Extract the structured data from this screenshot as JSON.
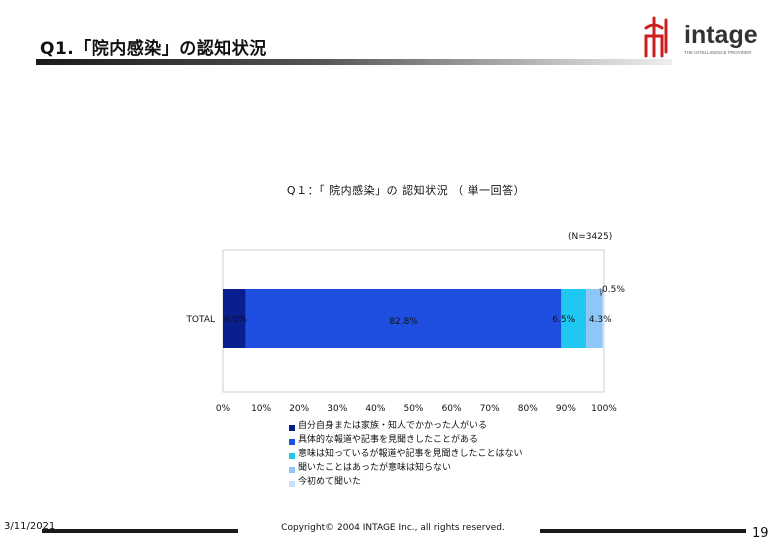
{
  "slide": {
    "title": "Q1.「院内感染」の認知状況",
    "date": "3/11/2021",
    "copyright": "Copyright© 2004 INTAGE Inc., all rights reserved.",
    "page": "19"
  },
  "logo": {
    "text": "intage",
    "tagline": "THE INTELLIGENCE PROVIDER",
    "icon": "intage-brand-mark-icon"
  },
  "colors": {
    "accent_red": "#cc1f1f",
    "series": [
      "#0a1f8f",
      "#1f4fe0",
      "#1ec8f0",
      "#8ec7f5",
      "#c9e2fb"
    ]
  },
  "chart_data": {
    "type": "bar",
    "orientation": "horizontal",
    "stacked": true,
    "title": "Q１：「 院内感染」の 認知状況 （ 単一回答）",
    "sample_size_label": "(N=3425)",
    "categories": [
      "TOTAL"
    ],
    "series": [
      {
        "name": "自分自身または家族・知人でかかった人がいる",
        "values": [
          6.0
        ],
        "label": "6.0%"
      },
      {
        "name": "具体的な報道や記事を見聞きしたことがある",
        "values": [
          82.8
        ],
        "label": "82.8%"
      },
      {
        "name": "意味は知っているが報道や記事を見聞きしたことはない",
        "values": [
          6.5
        ],
        "label": "6.5%"
      },
      {
        "name": "聞いたことはあったが意味は知らない",
        "values": [
          4.3
        ],
        "label": "4.3%"
      },
      {
        "name": "今初めて聞いた",
        "values": [
          0.5
        ],
        "label": "0.5%"
      }
    ],
    "xlim": [
      0,
      100
    ],
    "x_ticks": [
      "0%",
      "10%",
      "20%",
      "30%",
      "40%",
      "50%",
      "60%",
      "70%",
      "80%",
      "90%",
      "100%"
    ],
    "legend_position": "bottom"
  }
}
